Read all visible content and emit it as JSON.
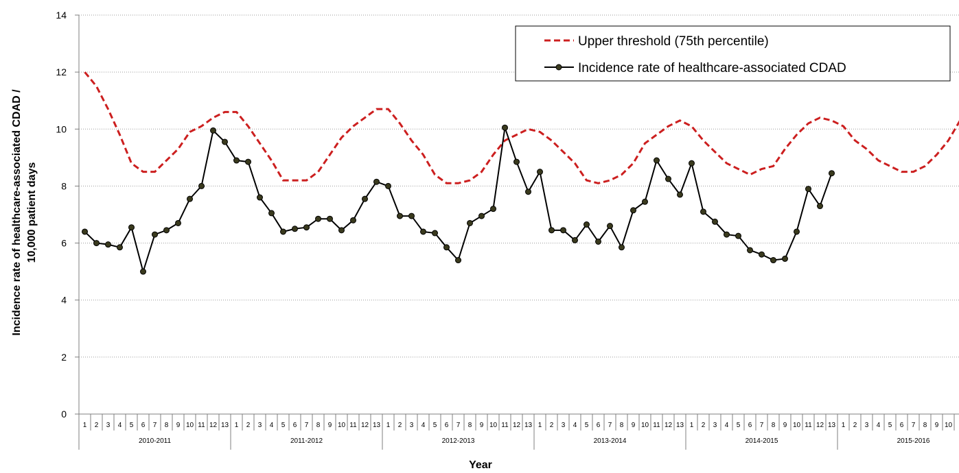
{
  "chart_data": {
    "type": "line",
    "title": "",
    "xlabel": "Year",
    "ylabel_lines": [
      "Incidence rate of healthcare-associated  CDAD /",
      "10,000 patient  days"
    ],
    "ylim": [
      0,
      14
    ],
    "yticks": [
      0,
      2,
      4,
      6,
      8,
      10,
      12,
      14
    ],
    "grid": "horizontal dotted",
    "legend_position": "top-right",
    "periods_per_year": 13,
    "year_groups": [
      "2010-2011",
      "2011-2012",
      "2012-2013",
      "2013-2014",
      "2014-2015",
      "2015-2016"
    ],
    "series": [
      {
        "name": "Upper threshold (75th percentile)",
        "style": "dashed",
        "color": "#cc1f1f",
        "values": [
          12.0,
          11.5,
          10.7,
          9.8,
          8.8,
          8.5,
          8.5,
          8.9,
          9.3,
          9.9,
          10.1,
          10.4,
          10.6,
          10.6,
          10.1,
          9.5,
          8.9,
          8.2,
          8.2,
          8.2,
          8.5,
          9.1,
          9.7,
          10.1,
          10.4,
          10.7,
          10.7,
          10.2,
          9.6,
          9.1,
          8.4,
          8.1,
          8.1,
          8.2,
          8.5,
          9.1,
          9.6,
          9.8,
          10.0,
          9.9,
          9.6,
          9.2,
          8.8,
          8.2,
          8.1,
          8.2,
          8.4,
          8.8,
          9.5,
          9.8,
          10.1,
          10.3,
          10.1,
          9.6,
          9.2,
          8.8,
          8.6,
          8.4,
          8.6,
          8.7,
          9.3,
          9.8,
          10.2,
          10.4,
          10.3,
          10.1,
          9.6,
          9.3,
          8.9,
          8.7,
          8.5,
          8.5,
          8.7,
          9.1,
          9.6,
          10.3
        ]
      },
      {
        "name": "Incidence rate of healthcare-associated  CDAD",
        "style": "solid-markers",
        "color": "#000000",
        "values": [
          6.4,
          6.0,
          5.95,
          5.85,
          6.55,
          5.0,
          6.3,
          6.45,
          6.7,
          7.55,
          8.0,
          9.95,
          9.55,
          8.9,
          8.85,
          7.6,
          7.05,
          6.4,
          6.5,
          6.55,
          6.85,
          6.85,
          6.45,
          6.8,
          7.55,
          8.15,
          8.0,
          6.95,
          6.95,
          6.4,
          6.35,
          5.85,
          5.4,
          6.7,
          6.95,
          7.2,
          10.05,
          8.85,
          7.8,
          8.5,
          6.45,
          6.45,
          6.1,
          6.65,
          6.05,
          6.6,
          5.85,
          7.15,
          7.45,
          8.9,
          8.25,
          7.7,
          8.8,
          7.1,
          6.75,
          6.3,
          6.25,
          5.75,
          5.6,
          5.4,
          5.45,
          6.4,
          7.9,
          7.3,
          8.45
        ]
      }
    ]
  }
}
